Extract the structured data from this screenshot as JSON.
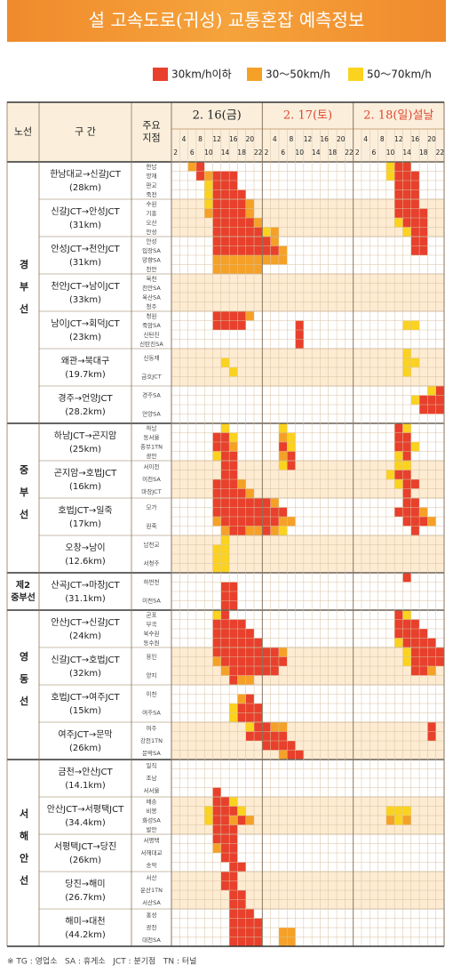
{
  "title": "설 고속도로(귀성) 교통혼잡 예측정보",
  "legend": [
    {
      "label": "30km/h이하",
      "color": "#e8402c"
    },
    {
      "label": "30～50km/h",
      "color": "#f5a128"
    },
    {
      "label": "50～70km/h",
      "color": "#fbd31f"
    }
  ],
  "header": {
    "route": "노선",
    "section": "구 간",
    "points": [
      "주요",
      "지점"
    ]
  },
  "days": [
    {
      "label": "2. 16(금)",
      "color": "#222222"
    },
    {
      "label": "2. 17(토)",
      "color": "#e0452f"
    },
    {
      "label": "2. 18(일)설날",
      "color": "#e0452f"
    }
  ],
  "hours": [
    2,
    4,
    6,
    8,
    10,
    12,
    14,
    16,
    18,
    20,
    22
  ],
  "roads": [
    {
      "name": "경부선",
      "sections": [
        {
          "name": "한남대교→신갈JCT",
          "length": "(28km)",
          "points": [
            "한남",
            "양재",
            "판교",
            "죽전"
          ],
          "cells": [
            [
              "00210000000",
              "00000000000",
              "00003110000"
            ],
            [
              "00012111000",
              "00000000000",
              "00003111000"
            ],
            [
              "00003111000",
              "00000000000",
              "00000111000"
            ],
            [
              "00003111100",
              "00000000000",
              "00000111000"
            ]
          ]
        },
        {
          "name": "신갈JCT→안성JCT",
          "length": "(31km)",
          "points": [
            "수원",
            "기흥",
            "오산",
            "안성"
          ],
          "cells": [
            [
              "00003111120",
              "00000000000",
              "00000111000"
            ],
            [
              "00002111120",
              "00000000000",
              "00000111100"
            ],
            [
              "00000111112",
              "00000000000",
              "00000311100"
            ],
            [
              "00000111111",
              "32000000000",
              "00000031100"
            ]
          ]
        },
        {
          "name": "안성JCT→천안JCT",
          "length": "(31km)",
          "points": [
            "안성",
            "입장SA",
            "망향SA",
            "천안"
          ],
          "cells": [
            [
              "00000111111",
              "12000000000",
              "00000001100"
            ],
            [
              "00000111111",
              "11200000000",
              "00000001100"
            ],
            [
              "00000222222",
              "22200000000",
              "00000000000"
            ],
            [
              "00000222222",
              "00000000000",
              "00000000000"
            ]
          ]
        },
        {
          "name": "천안JCT→남이JCT",
          "length": "(33km)",
          "points": [
            "목천",
            "천안SA",
            "옥산SA",
            "청주"
          ],
          "cells": [
            [
              "00000000000",
              "00000000000",
              "00000000000"
            ],
            [
              "00000000000",
              "00000000000",
              "00000000000"
            ],
            [
              "00000000000",
              "00000000000",
              "00000000000"
            ],
            [
              "00000000000",
              "00000000000",
              "00000000000"
            ]
          ]
        },
        {
          "name": "남이JCT→회덕JCT",
          "length": "(23km)",
          "points": [
            "청원",
            "죽암SA",
            "신탄진",
            "신탄진SA"
          ],
          "cells": [
            [
              "00000111120",
              "00000000000",
              "00000000000"
            ],
            [
              "00000111100",
              "00001000000",
              "00000033000"
            ],
            [
              "00000000000",
              "00001000000",
              "00000000000"
            ],
            [
              "00000000000",
              "00001000000",
              "00000000000"
            ]
          ]
        },
        {
          "name": "왜관→북대구",
          "length": "(19.7km)",
          "points": [
            "신동재",
            "금호JCT"
          ],
          "cells": [
            [
              "00000000000",
              "00000000000",
              "00000030000"
            ],
            [
              "00000030000",
              "00000000000",
              "00000033000"
            ],
            [
              "00000003000",
              "00000000000",
              "00000030000"
            ],
            [
              "00000000000",
              "00000000000",
              "00000000000"
            ]
          ]
        },
        {
          "name": "경주→언양JCT",
          "length": "(28.2km)",
          "points": [
            "경주SA",
            "언양SA"
          ],
          "cells": [
            [
              "00000000000",
              "00000000000",
              "00000000031"
            ],
            [
              "00000000000",
              "00000000000",
              "00000003111"
            ],
            [
              "00000000000",
              "00000000000",
              "00000000111"
            ],
            [
              "00000000000",
              "00000000000",
              "00000000000"
            ]
          ]
        }
      ]
    },
    {
      "name": "중부선",
      "sections": [
        {
          "name": "하남JCT→곤지암",
          "length": "(25km)",
          "points": [
            "하남",
            "동서울",
            "중부1TN",
            "광안"
          ],
          "cells": [
            [
              "00000030000",
              "00300000000",
              "00000130000"
            ],
            [
              "00000113000",
              "00230000000",
              "00000110000"
            ],
            [
              "00000112000",
              "00130000000",
              "00000113000"
            ],
            [
              "00000311000",
              "00210000000",
              "00000310000"
            ]
          ]
        },
        {
          "name": "곤지암→호법JCT",
          "length": "(16km)",
          "points": [
            "서이천",
            "이천SA",
            "마장JCT"
          ],
          "cells": [
            [
              "00000011000",
              "00310000000",
              "00000330000"
            ],
            [
              "00000011000",
              "00000000000",
              "00003110000"
            ],
            [
              "00000111200",
              "00000000000",
              "00000311000"
            ],
            [
              "00000111120",
              "00000000000",
              "00000010000"
            ]
          ]
        },
        {
          "name": "호법JCT→일죽",
          "length": "(17km)",
          "points": [
            "모가",
            "원죽"
          ],
          "cells": [
            [
              "00000111111",
              "12000000000",
              "00000011000"
            ],
            [
              "00000111111",
              "11100000000",
              "00000111200"
            ],
            [
              "00000211111",
              "11220000000",
              "00000011120"
            ],
            [
              "00000021122",
              "12300000000",
              "00000001000"
            ]
          ]
        },
        {
          "name": "오창→남이",
          "length": "(12.6km)",
          "points": [
            "남천교",
            "서청주"
          ],
          "cells": [
            [
              "00000030000",
              "00000000000",
              "00000000000"
            ],
            [
              "00000330000",
              "00000000000",
              "00000000000"
            ],
            [
              "00000330000",
              "00000000000",
              "00000000000"
            ],
            [
              "00000330000",
              "00000000000",
              "00000000000"
            ]
          ]
        }
      ]
    },
    {
      "name": [
        "제2",
        "중부선"
      ],
      "sections": [
        {
          "name": "산곡JCT→마장JCT",
          "length": "(31.1km)",
          "points": [
            "하번천",
            "이천SA"
          ],
          "cells": [
            [
              "00000000000",
              "00000000000",
              "00000010000"
            ],
            [
              "00000011000",
              "00000000000",
              "00000000000"
            ],
            [
              "00000011000",
              "00000000000",
              "00000000000"
            ],
            [
              "00000011000",
              "00000000000",
              "00000000000"
            ]
          ]
        }
      ]
    },
    {
      "name": "영동선",
      "sections": [
        {
          "name": "안산JCT→신갈JCT",
          "length": "(24km)",
          "points": [
            "군포",
            "부곡",
            "북수원",
            "동수원"
          ],
          "cells": [
            [
              "00000310000",
              "00000000000",
              "00000130000"
            ],
            [
              "00000111100",
              "00000000000",
              "00000111000"
            ],
            [
              "00000111110",
              "00000000000",
              "00000111100"
            ],
            [
              "00000111111",
              "00000000000",
              "00000311110"
            ]
          ]
        },
        {
          "name": "신갈JCT→호법JCT",
          "length": "(32km)",
          "points": [
            "용인",
            "양지"
          ],
          "cells": [
            [
              "00000111111",
              "11200000000",
              "00000031111"
            ],
            [
              "00000211111",
              "11100000000",
              "00000031111"
            ],
            [
              "00000021111",
              "11000000000",
              "00000001120"
            ],
            [
              "00000001220",
              "00000000000",
              "00000000000"
            ]
          ]
        },
        {
          "name": "호법JCT→여주JCT",
          "length": "(15km)",
          "points": [
            "이천",
            "여주SA"
          ],
          "cells": [
            [
              "00000000000",
              "00000000000",
              "00000000000"
            ],
            [
              "00000000210",
              "00000000000",
              "00000000000"
            ],
            [
              "00000003111",
              "00000000000",
              "00000000000"
            ],
            [
              "00000003111",
              "00000000000",
              "00000000000"
            ]
          ]
        },
        {
          "name": "여주JCT→문막",
          "length": "(26km)",
          "points": [
            "여주",
            "강천1TN",
            "문막SA"
          ],
          "cells": [
            [
              "00000000031",
              "12200000000",
              "00000000010"
            ],
            [
              "00000000011",
              "11100000000",
              "00000000010"
            ],
            [
              "00000000000",
              "11110000000",
              "00000000000"
            ],
            [
              "00000000000",
              "00211000000",
              "00000000000"
            ]
          ]
        }
      ]
    },
    {
      "name": "서해안선",
      "sections": [
        {
          "name": "금천→안산JCT",
          "length": "(14.1km)",
          "points": [
            "일직",
            "조남",
            "서서울"
          ],
          "cells": [
            [
              "00000000000",
              "00000000000",
              "00000000000"
            ],
            [
              "00000000000",
              "00000000000",
              "00000000000"
            ],
            [
              "00000000000",
              "00000000000",
              "00000000000"
            ],
            [
              "00000100000",
              "00000000000",
              "00000000000"
            ]
          ]
        },
        {
          "name": "안산JCT→서평택JCT",
          "length": "(34.4km)",
          "points": [
            "매송",
            "비봉",
            "화성SA",
            "발안"
          ],
          "cells": [
            [
              "00000113000",
              "00000000000",
              "00000000000"
            ],
            [
              "00003111300",
              "00000000000",
              "00003330000"
            ],
            [
              "00003112120",
              "00000000000",
              "00002320000"
            ],
            [
              "00000111000",
              "00000000000",
              "00000000000"
            ]
          ]
        },
        {
          "name": "서평택JCT→당진",
          "length": "(26km)",
          "points": [
            "서평택",
            "서해대교",
            "송악"
          ],
          "cells": [
            [
              "00000111000",
              "00000000000",
              "00000000000"
            ],
            [
              "00000211000",
              "00000000000",
              "00000000000"
            ],
            [
              "00000011000",
              "00000000000",
              "00000000000"
            ],
            [
              "00000001100",
              "00000000000",
              "00000000000"
            ]
          ]
        },
        {
          "name": "당진→해미",
          "length": "(26.7km)",
          "points": [
            "서산",
            "운산1TN",
            "서산SA"
          ],
          "cells": [
            [
              "00000011000",
              "00000000000",
              "00000000000"
            ],
            [
              "00000011000",
              "00000000000",
              "00000000000"
            ],
            [
              "00000001100",
              "00000000000",
              "00000000000"
            ],
            [
              "00000001100",
              "00000000000",
              "00000000000"
            ]
          ]
        },
        {
          "name": "해미→대천",
          "length": "(44.2km)",
          "points": [
            "홍성",
            "광천",
            "대천SA"
          ],
          "cells": [
            [
              "00000001110",
              "00000000000",
              "00000000000"
            ],
            [
              "00000001111",
              "00000000000",
              "00000000000"
            ],
            [
              "00000001111",
              "00220000000",
              "00000000000"
            ],
            [
              "00000001111",
              "00220000000",
              "00000000000"
            ]
          ]
        }
      ]
    }
  ],
  "footnote": "※ TG : 영업소   SA : 휴게소   JCT : 분기점   TN : 터널"
}
